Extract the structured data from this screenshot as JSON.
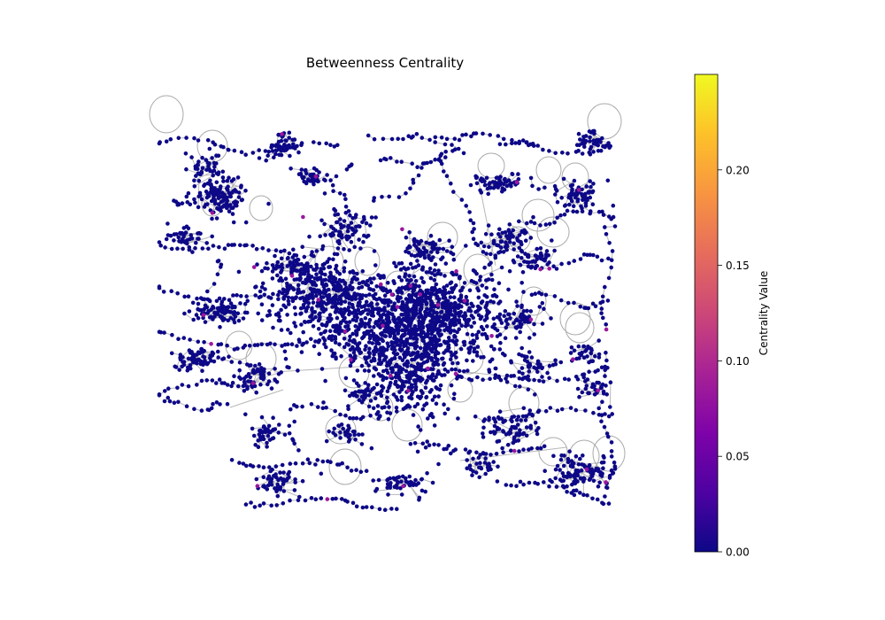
{
  "chart_data": {
    "type": "network",
    "title": "Betweenness Centrality",
    "colorbar": {
      "label": "Centrality Value",
      "colormap": "plasma",
      "range": [
        0,
        0.25
      ],
      "ticks": [
        {
          "value": 0.0,
          "label": "0.00"
        },
        {
          "value": 0.05,
          "label": "0.05"
        },
        {
          "value": 0.1,
          "label": "0.10"
        },
        {
          "value": 0.15,
          "label": "0.15"
        },
        {
          "value": 0.2,
          "label": "0.20"
        }
      ]
    },
    "colors": {
      "node_base": "#0d0887",
      "node_mid": "#9c179e",
      "edge": "#999999",
      "self_loop": "#aaaaaa"
    }
  }
}
